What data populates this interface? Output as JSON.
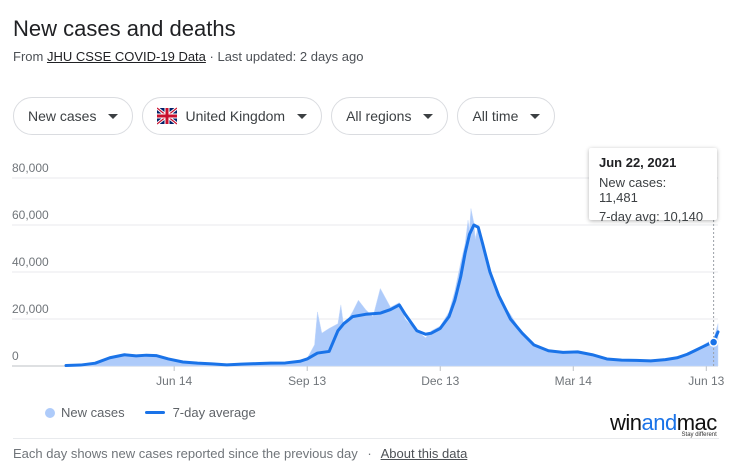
{
  "header": {
    "title": "New cases and deaths",
    "source_prefix": "From",
    "source_link": "JHU CSSE COVID-19 Data",
    "updated": "· Last updated: 2 days ago"
  },
  "filters": [
    {
      "label": "New cases"
    },
    {
      "label": "United Kingdom",
      "flag": "uk-flag-icon"
    },
    {
      "label": "All regions"
    },
    {
      "label": "All time"
    }
  ],
  "tooltip": {
    "date": "Jun 22, 2021",
    "new_cases": "New cases: 11,481",
    "avg": "7-day avg: 10,140"
  },
  "legend": {
    "new_cases": "New cases",
    "avg": "7-day average"
  },
  "footer": {
    "note": "Each day shows new cases reported since the previous day",
    "sep": "·",
    "link": "About this data"
  },
  "logo": {
    "text_a": "win",
    "text_b": "and",
    "text_c": "mac",
    "tagline": "Stay different"
  },
  "colors": {
    "bars": "#aecbfa",
    "line": "#1a73e8",
    "grid": "#e8eaed"
  },
  "chart_data": {
    "type": "area",
    "title": "",
    "y_ticks": [
      "80,000",
      "60,000",
      "40,000",
      "20,000",
      "0"
    ],
    "ylim": [
      0,
      80000
    ],
    "x_ticks": [
      "Jun 14",
      "Sep 13",
      "Dec 13",
      "Mar 14",
      "Jun 13"
    ],
    "x_tick_days": [
      74,
      165,
      256,
      347,
      438
    ],
    "xlim": [
      0,
      446
    ],
    "grid": true,
    "series": [
      {
        "name": "7-day average",
        "x_days": [
          0,
          10,
          20,
          30,
          40,
          48,
          55,
          62,
          70,
          80,
          90,
          100,
          110,
          120,
          130,
          140,
          150,
          160,
          165,
          172,
          180,
          186,
          190,
          196,
          205,
          215,
          222,
          228,
          232,
          240,
          246,
          250,
          256,
          262,
          266,
          270,
          273,
          276,
          279,
          282,
          285,
          290,
          296,
          304,
          312,
          320,
          330,
          340,
          350,
          360,
          370,
          380,
          390,
          400,
          410,
          418,
          425,
          430,
          435,
          440,
          443,
          446
        ],
        "values": [
          200,
          400,
          1200,
          3500,
          4800,
          4300,
          4600,
          4400,
          3000,
          1700,
          1200,
          900,
          500,
          800,
          1000,
          1200,
          1300,
          2000,
          3000,
          5500,
          6200,
          15000,
          18000,
          21000,
          22000,
          22500,
          24000,
          26000,
          22000,
          15000,
          13500,
          14000,
          16000,
          21000,
          28000,
          38000,
          48000,
          56000,
          60000,
          59000,
          52000,
          40000,
          30000,
          20000,
          14000,
          9000,
          6500,
          5800,
          6000,
          4800,
          3000,
          2500,
          2400,
          2200,
          2700,
          3500,
          5000,
          6500,
          8000,
          9500,
          10140,
          14500
        ]
      },
      {
        "name": "New cases",
        "x_days": [
          0,
          10,
          20,
          30,
          40,
          48,
          55,
          62,
          70,
          80,
          90,
          100,
          110,
          120,
          130,
          140,
          150,
          160,
          165,
          170,
          172,
          175,
          180,
          186,
          188,
          190,
          196,
          200,
          205,
          210,
          215,
          222,
          228,
          232,
          240,
          246,
          250,
          256,
          262,
          266,
          270,
          273,
          275,
          276,
          277,
          279,
          280,
          282,
          285,
          290,
          296,
          304,
          312,
          320,
          330,
          340,
          350,
          360,
          370,
          380,
          390,
          400,
          410,
          418,
          425,
          430,
          435,
          440,
          443,
          446
        ],
        "values": [
          200,
          500,
          1300,
          3800,
          5200,
          4600,
          5000,
          4700,
          3200,
          1900,
          1300,
          1000,
          600,
          900,
          1100,
          1300,
          1500,
          2300,
          3300,
          9000,
          23000,
          14000,
          16000,
          18000,
          26000,
          17000,
          23000,
          28000,
          24000,
          21000,
          33000,
          25000,
          27000,
          20000,
          15000,
          12000,
          15000,
          17000,
          23000,
          32000,
          44000,
          52000,
          62000,
          58000,
          67000,
          61000,
          54000,
          60000,
          51000,
          42000,
          29000,
          22000,
          14000,
          9500,
          7000,
          6100,
          6200,
          5000,
          3200,
          2600,
          2500,
          2300,
          2800,
          3700,
          5400,
          7000,
          8600,
          10500,
          11481,
          18000
        ]
      }
    ]
  }
}
